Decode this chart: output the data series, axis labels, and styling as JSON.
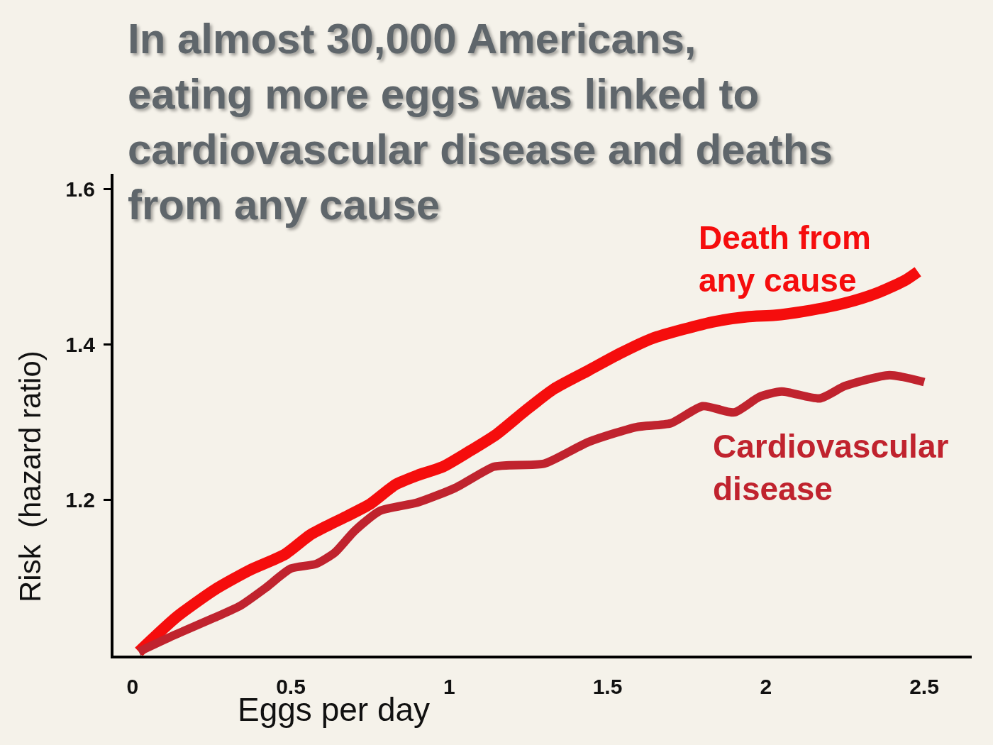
{
  "chart_data": {
    "type": "line",
    "title": "In almost 30,000 Americans, eating more eggs was linked to cardiovascular disease and deaths from any cause",
    "xlabel": "Eggs per day",
    "ylabel": "Risk  (hazard ratio)",
    "xlim": [
      -0.06,
      2.65
    ],
    "ylim": [
      1.0,
      1.62
    ],
    "xticks": [
      0,
      0.5,
      1,
      1.5,
      2,
      2.5
    ],
    "yticks": [
      1.2,
      1.4,
      1.6
    ],
    "grid": false,
    "legend": false,
    "marker": "none",
    "line_style": "solid",
    "series": [
      {
        "name": "Death from any cause",
        "color": "#f50d0d",
        "x": [
          0.02,
          0.14,
          0.26,
          0.37,
          0.48,
          0.56,
          0.62,
          0.68,
          0.75,
          0.83,
          0.9,
          0.98,
          1.06,
          1.15,
          1.24,
          1.33,
          1.44,
          1.54,
          1.64,
          1.74,
          1.84,
          1.94,
          2.03,
          2.12,
          2.2,
          2.28,
          2.36,
          2.44,
          2.48
        ],
        "values": [
          1.005,
          1.05,
          1.085,
          1.11,
          1.13,
          1.155,
          1.168,
          1.18,
          1.195,
          1.22,
          1.232,
          1.243,
          1.262,
          1.285,
          1.315,
          1.343,
          1.367,
          1.389,
          1.408,
          1.42,
          1.43,
          1.436,
          1.438,
          1.443,
          1.449,
          1.457,
          1.468,
          1.483,
          1.494
        ]
      },
      {
        "name": "Cardiovascular disease",
        "color": "#c0232e",
        "x": [
          0.02,
          0.13,
          0.26,
          0.34,
          0.42,
          0.5,
          0.58,
          0.64,
          0.7,
          0.78,
          0.9,
          1.02,
          1.14,
          1.19,
          1.3,
          1.44,
          1.59,
          1.7,
          1.8,
          1.9,
          1.98,
          2.05,
          2.17,
          2.25,
          2.39,
          2.5
        ],
        "values": [
          1.005,
          1.026,
          1.049,
          1.064,
          1.087,
          1.112,
          1.118,
          1.133,
          1.16,
          1.186,
          1.197,
          1.216,
          1.243,
          1.245,
          1.247,
          1.275,
          1.294,
          1.299,
          1.321,
          1.313,
          1.333,
          1.34,
          1.331,
          1.347,
          1.361,
          1.352
        ]
      }
    ]
  }
}
